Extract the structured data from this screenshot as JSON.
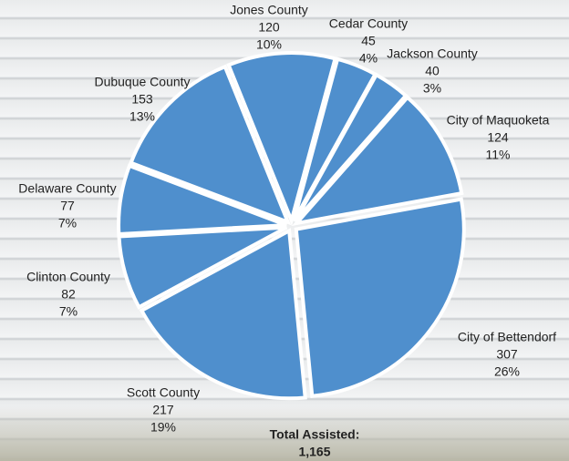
{
  "chart_data": {
    "type": "pie",
    "categories": [
      "Jones County",
      "Cedar County",
      "Jackson County",
      "City of Maquoketa",
      "City of Bettendorf",
      "Scott County",
      "Clinton County",
      "Delaware County",
      "Dubuque County"
    ],
    "values": [
      120,
      45,
      40,
      124,
      307,
      217,
      82,
      77,
      153
    ],
    "percent_labels": [
      "10%",
      "4%",
      "3%",
      "11%",
      "26%",
      "19%",
      "7%",
      "7%",
      "13%"
    ],
    "color": "#4f8fcd",
    "total_title": "Total Assisted:",
    "total_label": "1,165"
  }
}
